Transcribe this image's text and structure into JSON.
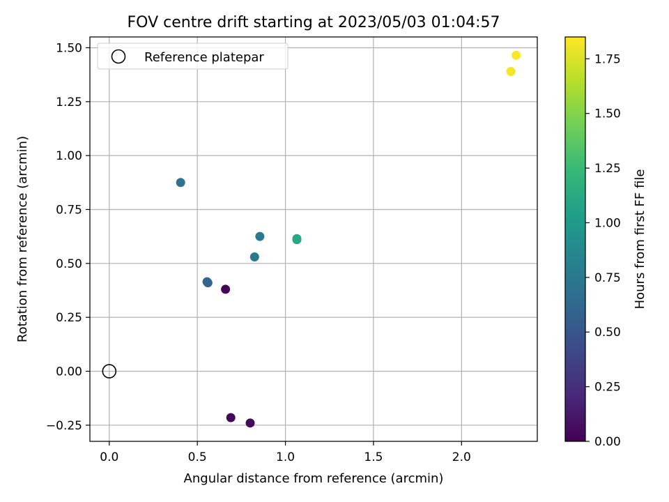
{
  "chart_data": {
    "type": "scatter",
    "title": "FOV centre drift starting at 2023/05/03 01:04:57",
    "xlabel": "Angular distance from reference (arcmin)",
    "ylabel": "Rotation from reference (arcmin)",
    "xlim": [
      -0.11,
      2.43
    ],
    "ylim": [
      -0.325,
      1.55
    ],
    "xticks": [
      0.0,
      0.5,
      1.0,
      1.5,
      2.0
    ],
    "xtick_labels": [
      "0.0",
      "0.5",
      "1.0",
      "1.5",
      "2.0"
    ],
    "yticks": [
      -0.25,
      0.0,
      0.25,
      0.5,
      0.75,
      1.0,
      1.25,
      1.5
    ],
    "ytick_labels": [
      "−0.25",
      "0.00",
      "0.25",
      "0.50",
      "0.75",
      "1.00",
      "1.25",
      "1.50"
    ],
    "grid": true,
    "legend": {
      "position": "top-left",
      "entries": [
        {
          "label": "Reference platepar",
          "marker": "open-circle"
        }
      ]
    },
    "reference_point": {
      "x": 0.0,
      "y": 0.0
    },
    "points": [
      {
        "x": 0.66,
        "y": 0.38,
        "hours": 0.02
      },
      {
        "x": 0.69,
        "y": -0.215,
        "hours": 0.03
      },
      {
        "x": 0.8,
        "y": -0.24,
        "hours": 0.04
      },
      {
        "x": 0.555,
        "y": 0.415,
        "hours": 0.6
      },
      {
        "x": 0.56,
        "y": 0.41,
        "hours": 0.61
      },
      {
        "x": 0.405,
        "y": 0.875,
        "hours": 0.7
      },
      {
        "x": 0.825,
        "y": 0.53,
        "hours": 0.75
      },
      {
        "x": 0.855,
        "y": 0.625,
        "hours": 0.77
      },
      {
        "x": 1.065,
        "y": 0.61,
        "hours": 1.1
      },
      {
        "x": 1.065,
        "y": 0.615,
        "hours": 1.11
      },
      {
        "x": 2.28,
        "y": 1.39,
        "hours": 1.82
      },
      {
        "x": 2.31,
        "y": 1.465,
        "hours": 1.84
      }
    ],
    "colorbar": {
      "label": "Hours from first FF file",
      "range": [
        0.0,
        1.85
      ],
      "ticks": [
        0.0,
        0.25,
        0.5,
        0.75,
        1.0,
        1.25,
        1.5,
        1.75
      ],
      "tick_labels": [
        "0.00",
        "0.25",
        "0.50",
        "0.75",
        "1.00",
        "1.25",
        "1.50",
        "1.75"
      ],
      "colormap": "viridis",
      "colormap_stops": [
        "#440154",
        "#482878",
        "#3e4989",
        "#31688e",
        "#26828e",
        "#1f9e89",
        "#35b779",
        "#6ece58",
        "#b5de2b",
        "#fde725"
      ]
    }
  }
}
